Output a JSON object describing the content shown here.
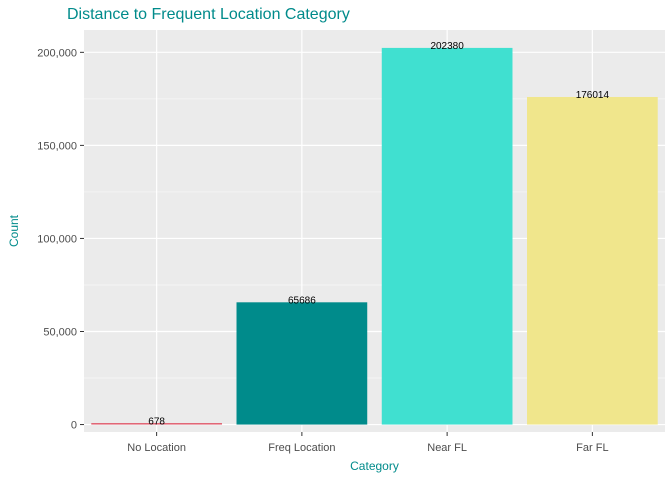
{
  "chart_data": {
    "type": "bar",
    "title": "Distance to Frequent Location Category",
    "xlabel": "Category",
    "ylabel": "Count",
    "categories": [
      "No Location",
      "Freq Location",
      "Near FL",
      "Far FL"
    ],
    "values": [
      678,
      65686,
      202380,
      176014
    ],
    "data_labels": [
      "678",
      "65686",
      "202380",
      "176014"
    ],
    "bar_colors": [
      "#e06070",
      "#008b8b",
      "#40e0d0",
      "#f0e68c"
    ],
    "ylim": [
      -4000,
      212000
    ],
    "y_ticks": [
      0,
      50000,
      100000,
      150000,
      200000
    ],
    "y_tick_labels": [
      "0",
      "50,000",
      "100,000",
      "150,000",
      "200,000"
    ],
    "grid": true,
    "legend": "none",
    "colors": {
      "panel_background": "#ebebeb",
      "grid_major": "#ffffff",
      "title": "#008b8b",
      "axis_title": "#008b8b",
      "tick_label": "#4d4d4d"
    }
  }
}
